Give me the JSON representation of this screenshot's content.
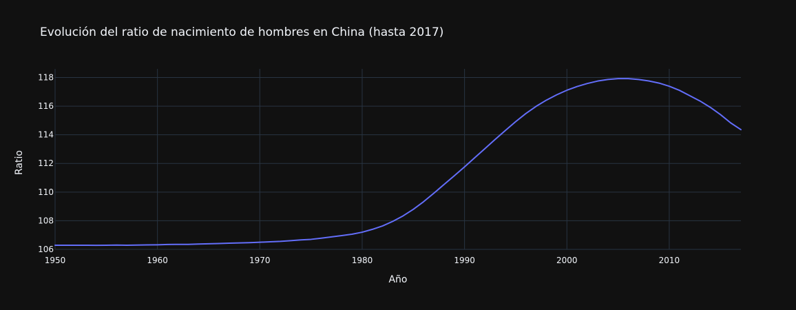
{
  "chart_data": {
    "type": "line",
    "title": "Evolución del ratio de nacimiento de hombres en China (hasta 2017)",
    "xlabel": "Año",
    "ylabel": "Ratio",
    "xlim": [
      1950,
      2017
    ],
    "ylim": [
      106,
      118.6
    ],
    "xticks": [
      1950,
      1960,
      1970,
      1980,
      1990,
      2000,
      2010
    ],
    "xtick_labels": [
      "1950",
      "1960",
      "1970",
      "1980",
      "1990",
      "2000",
      "2010"
    ],
    "yticks": [
      106,
      108,
      110,
      112,
      114,
      116,
      118
    ],
    "ytick_labels": [
      "106",
      "108",
      "110",
      "112",
      "114",
      "116",
      "118"
    ],
    "grid": true,
    "legend": false,
    "colors": {
      "background": "#111111",
      "grid": "#283442",
      "text": "#f2f5fa",
      "line": "#636efa"
    },
    "series": [
      {
        "x": [
          1950,
          1951,
          1952,
          1953,
          1954,
          1955,
          1956,
          1957,
          1958,
          1959,
          1960,
          1961,
          1962,
          1963,
          1964,
          1965,
          1966,
          1967,
          1968,
          1969,
          1970,
          1971,
          1972,
          1973,
          1974,
          1975,
          1976,
          1977,
          1978,
          1979,
          1980,
          1981,
          1982,
          1983,
          1984,
          1985,
          1986,
          1987,
          1988,
          1989,
          1990,
          1991,
          1992,
          1993,
          1994,
          1995,
          1996,
          1997,
          1998,
          1999,
          2000,
          2001,
          2002,
          2003,
          2004,
          2005,
          2006,
          2007,
          2008,
          2009,
          2010,
          2011,
          2012,
          2013,
          2014,
          2015,
          2016,
          2017
        ],
        "y": [
          106.29,
          106.29,
          106.29,
          106.29,
          106.28,
          106.29,
          106.3,
          106.29,
          106.3,
          106.31,
          106.32,
          106.34,
          106.35,
          106.35,
          106.37,
          106.39,
          106.41,
          106.43,
          106.45,
          106.47,
          106.5,
          106.53,
          106.56,
          106.61,
          106.66,
          106.7,
          106.78,
          106.87,
          106.96,
          107.06,
          107.2,
          107.4,
          107.64,
          107.96,
          108.34,
          108.8,
          109.33,
          109.92,
          110.53,
          111.14,
          111.76,
          112.4,
          113.04,
          113.68,
          114.31,
          114.92,
          115.49,
          115.99,
          116.42,
          116.79,
          117.11,
          117.37,
          117.58,
          117.75,
          117.86,
          117.92,
          117.92,
          117.86,
          117.76,
          117.61,
          117.39,
          117.1,
          116.73,
          116.36,
          115.92,
          115.41,
          114.83,
          114.36
        ]
      }
    ]
  }
}
